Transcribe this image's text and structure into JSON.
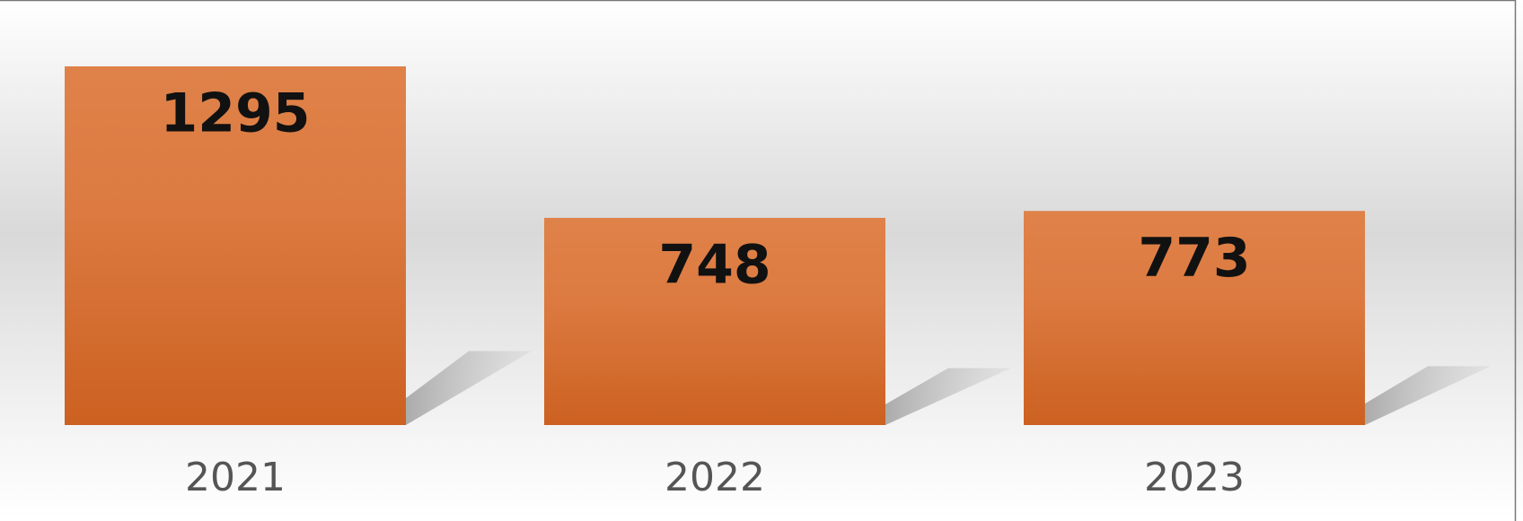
{
  "chart_data": {
    "type": "bar",
    "categories": [
      "2021",
      "2022",
      "2023"
    ],
    "values": [
      1295,
      748,
      773
    ],
    "color": "#d96f35"
  }
}
